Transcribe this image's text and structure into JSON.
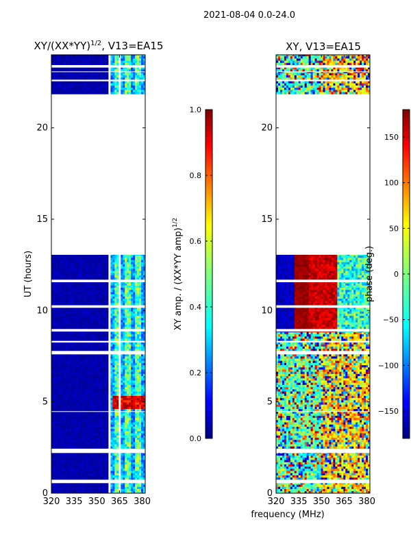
{
  "figure": {
    "suptitle": "2021-08-04 0.0-24.0",
    "shared_xlabel": "frequency (MHz)"
  },
  "colors": {
    "background": "#ffffff",
    "missing_data": "#ffffff",
    "axis": "#000000",
    "jet": [
      "#00007f",
      "#0000ff",
      "#007fff",
      "#00ffff",
      "#7fff7f",
      "#ffff00",
      "#ff7f00",
      "#ff0000",
      "#7f0000"
    ]
  },
  "chart_data": [
    {
      "type": "heatmap",
      "name": "amplitude",
      "title": "XY/(XX*YY)",
      "title_sup": "1/2",
      "title_suffix": ", V13=EA15",
      "xlabel": "",
      "ylabel": "UT (hours)",
      "xlim": [
        320,
        382
      ],
      "ylim": [
        0,
        24
      ],
      "xticks": [
        320,
        335,
        350,
        365,
        380
      ],
      "yticks": [
        0,
        5,
        10,
        15,
        20
      ],
      "colorbar": {
        "label": "XY amp. / (XX*YY amp)",
        "label_sup": "1/2",
        "range": [
          0.0,
          1.0
        ],
        "ticks": [
          0.0,
          0.2,
          0.4,
          0.6,
          0.8,
          1.0
        ],
        "tick_labels": [
          "0.0",
          "0.2",
          "0.4",
          "0.6",
          "0.8",
          "1.0"
        ],
        "colormap": "jet"
      },
      "data_blocks_ut": [
        [
          0.0,
          0.55
        ],
        [
          0.75,
          2.2
        ],
        [
          2.45,
          4.45
        ],
        [
          4.5,
          7.6
        ],
        [
          7.8,
          8.25
        ],
        [
          8.35,
          8.85
        ],
        [
          9.0,
          10.15
        ],
        [
          10.3,
          11.55
        ],
        [
          11.7,
          13.05
        ],
        [
          21.85,
          22.55
        ],
        [
          22.65,
          23.05
        ],
        [
          23.1,
          23.3
        ],
        [
          23.45,
          24.0
        ]
      ],
      "regions": [
        {
          "freq_mhz": [
            320,
            358
          ],
          "amplitude": 0.02,
          "note": "low amplitude"
        },
        {
          "freq_mhz": [
            358,
            382
          ],
          "amplitude": 0.35,
          "note": "elevated amplitude, striped channels"
        },
        {
          "freq_mhz": [
            360,
            382
          ],
          "ut_hours": [
            4.6,
            5.3
          ],
          "amplitude": 0.9,
          "note": "high amplitude burst"
        }
      ]
    },
    {
      "type": "heatmap",
      "name": "phase",
      "title": "XY, V13=EA15",
      "xlabel": "",
      "ylabel": "",
      "xlim": [
        320,
        382
      ],
      "ylim": [
        0,
        24
      ],
      "xticks": [
        320,
        335,
        350,
        365,
        380
      ],
      "yticks": [
        0,
        5,
        10,
        15,
        20
      ],
      "colorbar": {
        "label": "phase (deg.)",
        "range": [
          -180,
          180
        ],
        "ticks": [
          -150,
          -100,
          -50,
          0,
          50,
          100,
          150
        ],
        "tick_labels": [
          "−150",
          "−100",
          "−50",
          "0",
          "50",
          "100",
          "150"
        ],
        "colormap": "jet"
      },
      "data_blocks_ut": [
        [
          0.0,
          0.55
        ],
        [
          0.75,
          2.2
        ],
        [
          2.45,
          4.45
        ],
        [
          4.5,
          7.6
        ],
        [
          7.8,
          8.25
        ],
        [
          8.35,
          8.85
        ],
        [
          9.0,
          10.15
        ],
        [
          10.3,
          11.55
        ],
        [
          11.7,
          13.05
        ],
        [
          21.85,
          22.55
        ],
        [
          22.65,
          23.05
        ],
        [
          23.1,
          23.3
        ],
        [
          23.45,
          24.0
        ]
      ],
      "regions": [
        {
          "freq_mhz": [
            320,
            332
          ],
          "ut_hours": [
            8.8,
            13.05
          ],
          "phase_deg": -170
        },
        {
          "freq_mhz": [
            332,
            342
          ],
          "ut_hours": [
            8.8,
            13.05
          ],
          "phase_deg": 170
        },
        {
          "freq_mhz": [
            342,
            360
          ],
          "ut_hours": [
            8.8,
            13.05
          ],
          "phase_deg": 150
        },
        {
          "freq_mhz": [
            360,
            382
          ],
          "ut_hours": [
            8.8,
            13.05
          ],
          "phase_deg": -60
        },
        {
          "freq_mhz": [
            320,
            382
          ],
          "ut_hours": [
            0.0,
            8.8
          ],
          "phase_deg": "mixed, -180 to 180"
        },
        {
          "freq_mhz": [
            320,
            382
          ],
          "ut_hours": [
            21.85,
            24.0
          ],
          "phase_deg": "mixed, -180 to 180"
        }
      ]
    }
  ]
}
